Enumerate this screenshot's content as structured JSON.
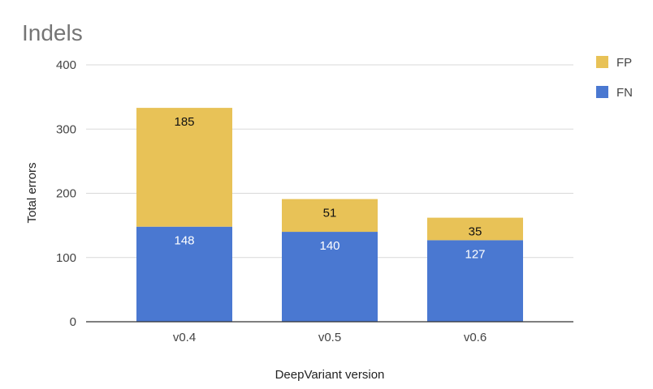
{
  "chart_data": {
    "type": "bar",
    "stacked": true,
    "title": "Indels",
    "xlabel": "DeepVariant version",
    "ylabel": "Total errors",
    "categories": [
      "v0.4",
      "v0.5",
      "v0.6"
    ],
    "series": [
      {
        "name": "FN",
        "values": [
          148,
          140,
          127
        ],
        "color": "#4a78d1",
        "label_color": "#ffffff"
      },
      {
        "name": "FP",
        "values": [
          185,
          51,
          35
        ],
        "color": "#e8c257",
        "label_color": "#111111"
      }
    ],
    "ylim": [
      0,
      400
    ],
    "yticks": [
      0,
      100,
      200,
      300,
      400
    ],
    "grid": true,
    "legend_position": "top-right",
    "legend_order": [
      "FP",
      "FN"
    ]
  }
}
